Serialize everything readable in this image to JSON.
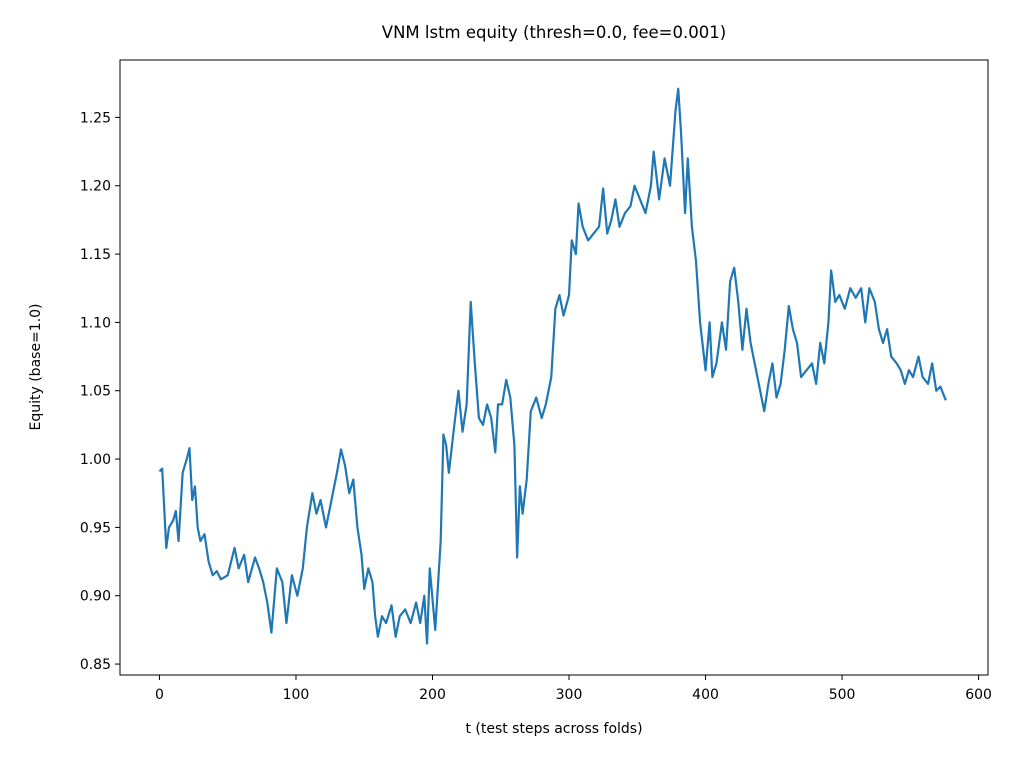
{
  "chart_data": {
    "type": "line",
    "title": "VNM lstm equity (thresh=0.0, fee=0.001)",
    "x_label": "t (test steps across folds)",
    "y_label": "Equity (base=1.0)",
    "xlim": [
      -28.9,
      606.9
    ],
    "ylim": [
      0.842,
      1.292
    ],
    "xticks": [
      0,
      100,
      200,
      300,
      400,
      500,
      600
    ],
    "yticks": [
      0.85,
      {
        "value": 0.9,
        "label": "0.90"
      },
      0.95,
      {
        "value": 1.0,
        "label": "1.00"
      },
      1.05,
      {
        "value": 1.1,
        "label": "1.10"
      },
      1.15,
      {
        "value": 1.2,
        "label": "1.20"
      },
      1.25
    ],
    "grid": false,
    "series": [
      {
        "name": "equity",
        "color": "#1f77b4",
        "x": [
          0,
          2,
          5,
          7,
          10,
          12,
          14,
          17,
          20,
          22,
          24,
          26,
          28,
          30,
          33,
          36,
          39,
          42,
          45,
          50,
          55,
          58,
          62,
          65,
          70,
          73,
          76,
          79,
          82,
          86,
          90,
          93,
          97,
          101,
          105,
          108,
          112,
          115,
          118,
          122,
          126,
          130,
          133,
          136,
          139,
          142,
          145,
          148,
          150,
          153,
          156,
          158,
          160,
          163,
          166,
          170,
          173,
          176,
          180,
          184,
          188,
          191,
          194,
          196,
          198,
          202,
          206,
          208,
          210,
          212,
          216,
          219,
          222,
          225,
          228,
          231,
          234,
          237,
          240,
          243,
          246,
          248,
          251,
          254,
          257,
          260,
          262,
          264,
          266,
          269,
          272,
          276,
          280,
          283,
          287,
          290,
          293,
          296,
          300,
          302,
          305,
          307,
          310,
          314,
          318,
          322,
          325,
          328,
          331,
          334,
          337,
          341,
          345,
          348,
          352,
          356,
          360,
          362,
          366,
          370,
          374,
          378,
          380,
          382,
          385,
          387,
          390,
          393,
          396,
          400,
          403,
          405,
          408,
          412,
          415,
          418,
          421,
          424,
          427,
          430,
          433,
          436,
          440,
          443,
          446,
          449,
          452,
          455,
          458,
          461,
          464,
          467,
          470,
          474,
          478,
          481,
          484,
          487,
          490,
          492,
          495,
          498,
          502,
          506,
          510,
          514,
          517,
          520,
          524,
          527,
          530,
          533,
          536,
          540,
          543,
          546,
          549,
          552,
          556,
          559,
          563,
          566,
          569,
          572,
          576
        ],
        "values": [
          0.991,
          0.993,
          0.935,
          0.95,
          0.955,
          0.962,
          0.94,
          0.99,
          1.0,
          1.008,
          0.97,
          0.98,
          0.95,
          0.94,
          0.945,
          0.925,
          0.915,
          0.918,
          0.912,
          0.915,
          0.935,
          0.92,
          0.93,
          0.91,
          0.928,
          0.92,
          0.91,
          0.895,
          0.873,
          0.92,
          0.91,
          0.88,
          0.915,
          0.9,
          0.92,
          0.95,
          0.975,
          0.96,
          0.97,
          0.95,
          0.97,
          0.99,
          1.007,
          0.995,
          0.975,
          0.985,
          0.95,
          0.93,
          0.905,
          0.92,
          0.91,
          0.885,
          0.87,
          0.885,
          0.88,
          0.893,
          0.87,
          0.885,
          0.89,
          0.88,
          0.895,
          0.88,
          0.9,
          0.865,
          0.92,
          0.875,
          0.94,
          1.018,
          1.01,
          0.99,
          1.025,
          1.05,
          1.02,
          1.04,
          1.115,
          1.07,
          1.03,
          1.025,
          1.04,
          1.03,
          1.005,
          1.04,
          1.04,
          1.058,
          1.045,
          1.01,
          0.928,
          0.98,
          0.96,
          0.985,
          1.035,
          1.045,
          1.03,
          1.04,
          1.06,
          1.11,
          1.12,
          1.105,
          1.12,
          1.16,
          1.15,
          1.187,
          1.17,
          1.16,
          1.165,
          1.17,
          1.198,
          1.165,
          1.175,
          1.19,
          1.17,
          1.18,
          1.185,
          1.2,
          1.19,
          1.18,
          1.2,
          1.225,
          1.19,
          1.22,
          1.2,
          1.255,
          1.271,
          1.24,
          1.18,
          1.22,
          1.17,
          1.145,
          1.1,
          1.065,
          1.1,
          1.06,
          1.07,
          1.1,
          1.08,
          1.13,
          1.14,
          1.115,
          1.08,
          1.11,
          1.085,
          1.07,
          1.05,
          1.035,
          1.055,
          1.07,
          1.045,
          1.055,
          1.08,
          1.112,
          1.095,
          1.085,
          1.06,
          1.065,
          1.07,
          1.055,
          1.085,
          1.07,
          1.1,
          1.138,
          1.115,
          1.12,
          1.11,
          1.125,
          1.118,
          1.125,
          1.1,
          1.125,
          1.115,
          1.095,
          1.085,
          1.095,
          1.075,
          1.07,
          1.065,
          1.055,
          1.065,
          1.06,
          1.075,
          1.06,
          1.055,
          1.07,
          1.05,
          1.053,
          1.043
        ]
      }
    ]
  }
}
